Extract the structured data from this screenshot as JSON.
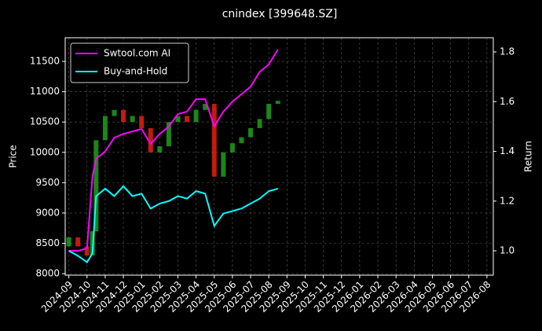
{
  "chart_data": {
    "type": "candlestick",
    "title": "cnindex [399648.SZ]",
    "y_label": "Price",
    "y2_label": "Return",
    "x": [
      0,
      0.5,
      1,
      1.3,
      1.5,
      2,
      2.5,
      3,
      3.5,
      4,
      4.5,
      5,
      5.5,
      6,
      6.5,
      7,
      7.5,
      8,
      8.5,
      9,
      9.5,
      10,
      10.5,
      11,
      11.5
    ],
    "open": [
      8450,
      8600,
      8450,
      8300,
      8700,
      10200,
      10600,
      10700,
      10500,
      10600,
      10400,
      10000,
      10100,
      10500,
      10600,
      10500,
      10700,
      10800,
      9600,
      10000,
      10150,
      10250,
      10400,
      10550,
      10800
    ],
    "close": [
      8600,
      8450,
      8300,
      8700,
      10200,
      10600,
      10700,
      10500,
      10600,
      10400,
      10000,
      10100,
      10500,
      10600,
      10500,
      10700,
      10800,
      9600,
      10000,
      10150,
      10250,
      10400,
      10550,
      10800,
      10850
    ],
    "up_color": "#1f9e1f",
    "down_color": "#e0200f",
    "series": [
      {
        "name": "Swtool.com AI",
        "color": "#ff00ff",
        "axis": "y2",
        "values": [
          1.0,
          1.0,
          1.01,
          1.3,
          1.37,
          1.4,
          1.455,
          1.47,
          1.48,
          1.49,
          1.43,
          1.47,
          1.5,
          1.55,
          1.56,
          1.61,
          1.61,
          1.5,
          1.56,
          1.6,
          1.63,
          1.66,
          1.72,
          1.75,
          1.81
        ]
      },
      {
        "name": "Buy-and-Hold",
        "color": "#00ffff",
        "axis": "y2",
        "values": [
          1.0,
          0.98,
          0.954,
          0.99,
          1.22,
          1.25,
          1.22,
          1.26,
          1.22,
          1.23,
          1.17,
          1.19,
          1.2,
          1.22,
          1.21,
          1.24,
          1.23,
          1.1,
          1.15,
          1.16,
          1.17,
          1.19,
          1.21,
          1.24,
          1.25
        ]
      }
    ],
    "xlim": [
      -0.2,
      23.35
    ],
    "xticks": [
      {
        "value": 0,
        "label": "2024-09"
      },
      {
        "value": 1,
        "label": "2024-10"
      },
      {
        "value": 2,
        "label": "2024-11"
      },
      {
        "value": 3,
        "label": "2024-12"
      },
      {
        "value": 4,
        "label": "2025-01"
      },
      {
        "value": 5,
        "label": "2025-02"
      },
      {
        "value": 6,
        "label": "2025-03"
      },
      {
        "value": 7,
        "label": "2025-04"
      },
      {
        "value": 8,
        "label": "2025-05"
      },
      {
        "value": 9,
        "label": "2025-06"
      },
      {
        "value": 10,
        "label": "2025-07"
      },
      {
        "value": 11,
        "label": "2025-08"
      },
      {
        "value": 12,
        "label": "2025-09"
      },
      {
        "value": 13,
        "label": "2025-10"
      },
      {
        "value": 14,
        "label": "2025-11"
      },
      {
        "value": 15,
        "label": "2025-12"
      },
      {
        "value": 16,
        "label": "2026-01"
      },
      {
        "value": 17,
        "label": "2026-02"
      },
      {
        "value": 18,
        "label": "2026-03"
      },
      {
        "value": 19,
        "label": "2026-04"
      },
      {
        "value": 20,
        "label": "2026-05"
      },
      {
        "value": 21,
        "label": "2026-06"
      },
      {
        "value": 22,
        "label": "2026-07"
      },
      {
        "value": 23,
        "label": "2026-08"
      }
    ],
    "ylim": [
      7975,
      11890
    ],
    "yticks": [
      8000,
      8500,
      9000,
      9500,
      10000,
      10500,
      11000,
      11500
    ],
    "y2lim": [
      0.902,
      1.857
    ],
    "y2ticks": [
      {
        "value": 1.0,
        "label": "1.0"
      },
      {
        "value": 1.2,
        "label": "1.2"
      },
      {
        "value": 1.4,
        "label": "1.4"
      },
      {
        "value": 1.6,
        "label": "1.6"
      },
      {
        "value": 1.8,
        "label": "1.8"
      }
    ],
    "grid": true,
    "legend": "upper left"
  }
}
